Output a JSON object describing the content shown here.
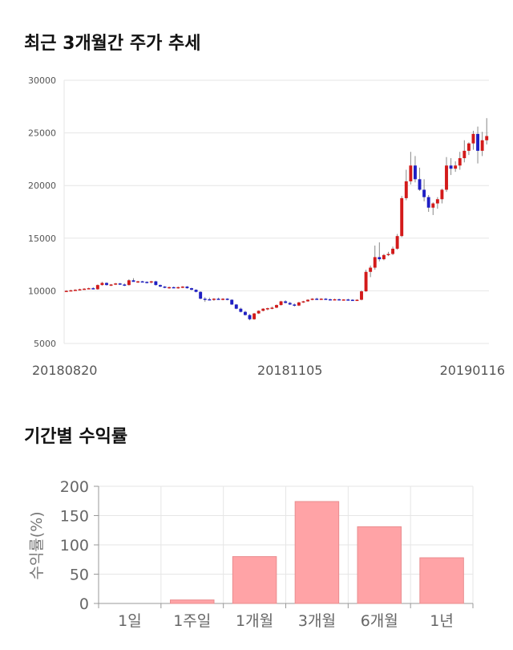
{
  "sections": {
    "price_title": "최근 3개월간 주가 추세",
    "returns_title": "기간별 수익률"
  },
  "chart_data": [
    {
      "type": "candlestick",
      "title": "최근 3개월간 주가 추세",
      "ylim": [
        5000,
        30000
      ],
      "yticks": [
        "30000",
        "25000",
        "20000",
        "15000",
        "10000",
        "5000"
      ],
      "ytick_values": [
        30000,
        25000,
        20000,
        15000,
        10000,
        5000
      ],
      "xtick_labels": [
        "20180820",
        "20181105",
        "20190116"
      ],
      "xtick_index": [
        0,
        50,
        99
      ],
      "grid": true,
      "colors": {
        "up": "#d31a1a",
        "down": "#1f1fc4",
        "wick": "#888888"
      },
      "candles": [
        [
          9950,
          10050,
          9900,
          10000
        ],
        [
          10000,
          10100,
          9950,
          10050
        ],
        [
          10050,
          10150,
          10000,
          10100
        ],
        [
          10100,
          10200,
          10050,
          10150
        ],
        [
          10150,
          10250,
          10100,
          10200
        ],
        [
          10200,
          10300,
          10150,
          10250
        ],
        [
          10250,
          10350,
          10200,
          10150
        ],
        [
          10150,
          10600,
          10100,
          10550
        ],
        [
          10550,
          10850,
          10500,
          10750
        ],
        [
          10750,
          10800,
          10500,
          10550
        ],
        [
          10550,
          10650,
          10450,
          10600
        ],
        [
          10600,
          10750,
          10550,
          10700
        ],
        [
          10700,
          10750,
          10550,
          10600
        ],
        [
          10600,
          10700,
          10450,
          10550
        ],
        [
          10550,
          11100,
          10500,
          11000
        ],
        [
          11000,
          11200,
          10900,
          10850
        ],
        [
          10850,
          10950,
          10750,
          10900
        ],
        [
          10900,
          10950,
          10800,
          10850
        ],
        [
          10850,
          10900,
          10700,
          10800
        ],
        [
          10800,
          10950,
          10700,
          10900
        ],
        [
          10900,
          10950,
          10500,
          10550
        ],
        [
          10550,
          10600,
          10350,
          10400
        ],
        [
          10400,
          10450,
          10250,
          10300
        ],
        [
          10300,
          10400,
          10200,
          10350
        ],
        [
          10350,
          10400,
          10250,
          10300
        ],
        [
          10300,
          10400,
          10200,
          10350
        ],
        [
          10350,
          10450,
          10250,
          10400
        ],
        [
          10400,
          10450,
          10200,
          10250
        ],
        [
          10250,
          10300,
          10050,
          10100
        ],
        [
          10100,
          10150,
          9850,
          9900
        ],
        [
          9900,
          9950,
          9200,
          9250
        ],
        [
          9250,
          9400,
          8950,
          9200
        ],
        [
          9200,
          9350,
          9100,
          9150
        ],
        [
          9150,
          9300,
          9050,
          9250
        ],
        [
          9250,
          9350,
          9150,
          9200
        ],
        [
          9200,
          9300,
          9100,
          9250
        ],
        [
          9250,
          9300,
          9100,
          9150
        ],
        [
          9150,
          9200,
          8650,
          8700
        ],
        [
          8700,
          8750,
          8250,
          8300
        ],
        [
          8300,
          8400,
          7950,
          8000
        ],
        [
          8000,
          8100,
          7650,
          7700
        ],
        [
          7700,
          7800,
          7200,
          7300
        ],
        [
          7300,
          7900,
          7250,
          7850
        ],
        [
          7850,
          8150,
          7800,
          8100
        ],
        [
          8100,
          8350,
          8050,
          8300
        ],
        [
          8300,
          8400,
          8150,
          8350
        ],
        [
          8350,
          8500,
          8250,
          8400
        ],
        [
          8400,
          8700,
          8350,
          8650
        ],
        [
          8650,
          9050,
          8600,
          9000
        ],
        [
          9000,
          9100,
          8800,
          8850
        ],
        [
          8850,
          8950,
          8650,
          8700
        ],
        [
          8700,
          8800,
          8500,
          8600
        ],
        [
          8600,
          8950,
          8550,
          8900
        ],
        [
          8900,
          9050,
          8850,
          9000
        ],
        [
          9000,
          9200,
          8950,
          9150
        ],
        [
          9150,
          9300,
          9100,
          9250
        ],
        [
          9250,
          9350,
          9150,
          9200
        ],
        [
          9200,
          9300,
          9150,
          9250
        ],
        [
          9250,
          9300,
          9150,
          9200
        ],
        [
          9200,
          9250,
          9100,
          9150
        ],
        [
          9150,
          9250,
          9100,
          9200
        ],
        [
          9200,
          9250,
          9100,
          9150
        ],
        [
          9150,
          9200,
          9100,
          9180
        ],
        [
          9180,
          9250,
          9100,
          9150
        ],
        [
          9150,
          9200,
          9050,
          9100
        ],
        [
          9100,
          9200,
          9050,
          9150
        ],
        [
          9150,
          10050,
          9100,
          9950
        ],
        [
          9950,
          12000,
          9900,
          11800
        ],
        [
          11800,
          12400,
          11300,
          12200
        ],
        [
          12200,
          14300,
          12000,
          13200
        ],
        [
          13200,
          14600,
          12800,
          13000
        ],
        [
          13000,
          13500,
          12900,
          13400
        ],
        [
          13400,
          13700,
          13300,
          13500
        ],
        [
          13500,
          14200,
          13400,
          14000
        ],
        [
          14000,
          15400,
          13900,
          15200
        ],
        [
          15200,
          19000,
          15100,
          18800
        ],
        [
          18800,
          21500,
          18600,
          20400
        ],
        [
          20400,
          23200,
          20100,
          21900
        ],
        [
          21900,
          22800,
          20300,
          20600
        ],
        [
          20600,
          21700,
          19500,
          19600
        ],
        [
          19600,
          20600,
          18500,
          18900
        ],
        [
          18900,
          19100,
          17500,
          17900
        ],
        [
          17900,
          18400,
          17200,
          18300
        ],
        [
          18300,
          18900,
          17800,
          18700
        ],
        [
          18700,
          19700,
          18300,
          19600
        ],
        [
          19600,
          22700,
          19400,
          21900
        ],
        [
          21900,
          22600,
          21000,
          21600
        ],
        [
          21600,
          22300,
          21300,
          21900
        ],
        [
          21900,
          23200,
          21500,
          22600
        ],
        [
          22600,
          24300,
          22200,
          23300
        ],
        [
          23300,
          24100,
          22900,
          24000
        ],
        [
          24000,
          25200,
          23400,
          24900
        ],
        [
          24900,
          25600,
          22100,
          23300
        ],
        [
          23300,
          25100,
          22800,
          24300
        ],
        [
          24300,
          26400,
          23900,
          24700
        ]
      ]
    },
    {
      "type": "bar",
      "title": "기간별 수익률",
      "ylabel": "수익률(%)",
      "categories": [
        "1일",
        "1주일",
        "1개월",
        "3개월",
        "6개월",
        "1년"
      ],
      "values": [
        0,
        6,
        80,
        174,
        131,
        78
      ],
      "ylim": [
        0,
        200
      ],
      "yticks": [
        "200",
        "150",
        "100",
        "50",
        "0"
      ],
      "ytick_values": [
        200,
        150,
        100,
        50,
        0
      ],
      "grid": true,
      "colors": {
        "bar": "#ffa3a6",
        "bar_edge": "#e98d8f"
      }
    }
  ]
}
